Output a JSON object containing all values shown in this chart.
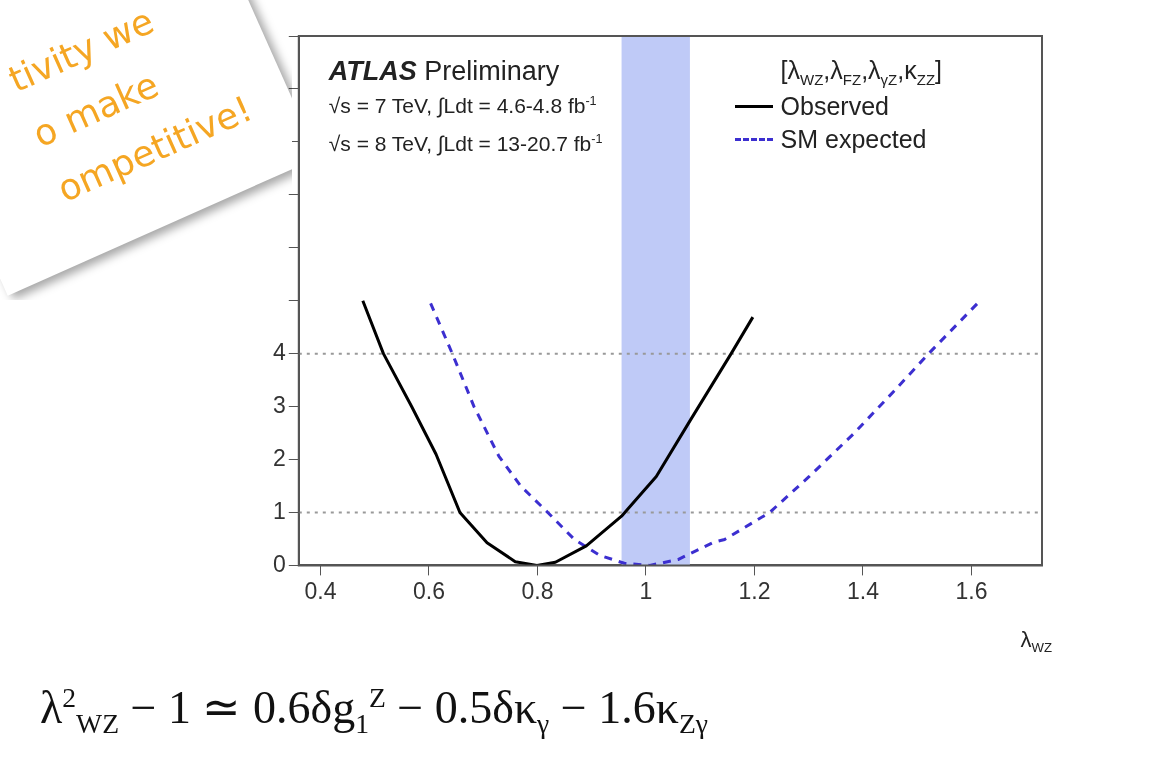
{
  "chart_data": {
    "type": "line",
    "xlabel": "λ$_{WZ}$",
    "legend_title": "[λ$_{WZ}$,λ$_{FZ}$,λ$_{γZ}$,κ$_{ZZ}$]",
    "legend": "top right",
    "marker": "none",
    "grid": false,
    "xlim": [
      0.36,
      1.73
    ],
    "ylim": [
      0,
      10
    ],
    "xticks": [
      0.4,
      0.6,
      0.8,
      1,
      1.2,
      1.4,
      1.6
    ],
    "yticks": [
      0,
      1,
      2,
      3,
      4,
      {
        "value": 5,
        "label": null
      },
      {
        "value": 6,
        "label": null
      },
      {
        "value": 7,
        "label": null
      },
      {
        "value": 8,
        "label": null
      },
      {
        "value": 9,
        "label": null
      },
      {
        "value": 10,
        "label": null
      }
    ],
    "series": [
      {
        "name": "Observed",
        "color": "#000000",
        "line_style": "solid",
        "x": [
          0.478,
          0.516,
          0.568,
          0.613,
          0.657,
          0.707,
          0.759,
          0.799,
          0.833,
          0.89,
          0.955,
          1.019,
          1.081,
          1.157,
          1.197
        ],
        "values": [
          5.0,
          4.0,
          3.0,
          2.1,
          1.0,
          0.43,
          0.07,
          0,
          0.06,
          0.37,
          0.93,
          1.68,
          2.73,
          4.0,
          4.69
        ]
      },
      {
        "name": "SM expected",
        "color": "#3c2fd0",
        "line_style": "dashed",
        "x": [
          0.603,
          0.643,
          0.683,
          0.729,
          0.769,
          0.819,
          0.868,
          0.915,
          0.96,
          1.007,
          1.059,
          1.123,
          1.145,
          1.228,
          1.301,
          1.383,
          1.457,
          1.521,
          1.613
        ],
        "values": [
          4.95,
          4.0,
          3.0,
          2.06,
          1.5,
          1.0,
          0.49,
          0.19,
          0.04,
          0,
          0.11,
          0.43,
          0.49,
          1.0,
          1.68,
          2.49,
          3.29,
          4.0,
          4.97
        ]
      }
    ],
    "ref_lines": [
      {
        "axis": "y",
        "value": 1,
        "color": "#999999",
        "line_style": "dotted"
      },
      {
        "axis": "y",
        "value": 4,
        "color": "#999999",
        "line_style": "dotted"
      }
    ],
    "bands": [
      {
        "axis": "x",
        "from": 0.955,
        "to": 1.081,
        "color": "#bfcaf7"
      }
    ],
    "annotations": [
      "ATLAS Preliminary",
      "√s = 7 TeV, ∫Ldt = 4.6-4.8 fb$^{-1}$",
      "√s = 8 TeV, ∫Ldt = 13-20.7 fb$^{-1}$",
      "tivity we",
      "o make",
      "ompetitive!",
      "λ$^{2}$$_{WZ}$ − 1  ≃  0.6δg$_{1}$$^{Z}$ − 0.5δκ$_{γ}$ − 1.6κ$_{Zγ}$"
    ]
  }
}
